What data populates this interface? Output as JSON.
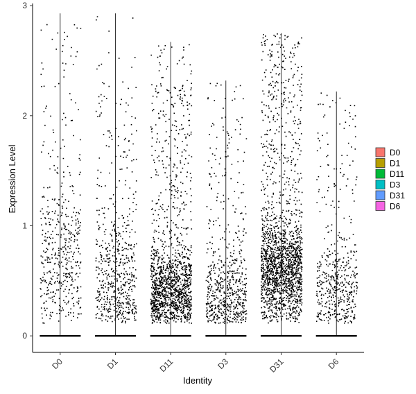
{
  "chart_data": {
    "type": "scatter",
    "subtype": "violin-jitter",
    "title": "",
    "xlabel": "Identity",
    "ylabel": "Expression Level",
    "categories": [
      "D0",
      "D1",
      "D11",
      "D3",
      "D31",
      "D6"
    ],
    "ylim": [
      -0.15,
      3.02
    ],
    "yticks": [
      0,
      1,
      2,
      3
    ],
    "grid": false,
    "legend": {
      "placement": "right",
      "entries": [
        {
          "label": "D0",
          "color": "#F8766D"
        },
        {
          "label": "D1",
          "color": "#B79F00"
        },
        {
          "label": "D11",
          "color": "#00BA38"
        },
        {
          "label": "D3",
          "color": "#00BFC4"
        },
        {
          "label": "D31",
          "color": "#619CFF"
        },
        {
          "label": "D6",
          "color": "#F564E3"
        }
      ]
    },
    "series": [
      {
        "category": "D0",
        "max": 2.93,
        "nonzero_points": 480,
        "mode": 0.7,
        "spread": 0.7,
        "top_dense": 2.5
      },
      {
        "category": "D1",
        "max": 2.93,
        "nonzero_points": 620,
        "mode": 0.5,
        "spread": 0.65,
        "top_dense": 2.3
      },
      {
        "category": "D11",
        "max": 2.67,
        "nonzero_points": 1500,
        "mode": 0.4,
        "spread": 0.45,
        "top_dense": 2.3
      },
      {
        "category": "D3",
        "max": 2.32,
        "nonzero_points": 650,
        "mode": 0.35,
        "spread": 0.5,
        "top_dense": 2.0
      },
      {
        "category": "D31",
        "max": 2.75,
        "nonzero_points": 1900,
        "mode": 0.6,
        "spread": 0.5,
        "top_dense": 2.6
      },
      {
        "category": "D6",
        "max": 2.22,
        "nonzero_points": 500,
        "mode": 0.4,
        "spread": 0.5,
        "top_dense": 2.1
      }
    ],
    "zero_band": true,
    "point_color": "#000000"
  }
}
